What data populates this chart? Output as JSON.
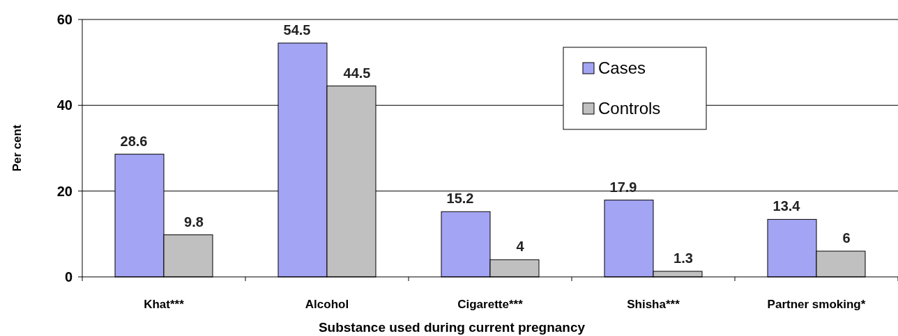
{
  "chart_data": {
    "type": "bar",
    "xlabel": "Substance used during current pregnancy",
    "ylabel": "Per cent",
    "categories": [
      "Khat***",
      "Alcohol",
      "Cigarette***",
      "Shisha***",
      "Partner smoking*"
    ],
    "series": [
      {
        "name": "Cases",
        "color": "#a4a4f4",
        "values": [
          28.6,
          54.5,
          15.2,
          17.9,
          13.4
        ]
      },
      {
        "name": "Controls",
        "color": "#c0c0c0",
        "values": [
          9.8,
          44.5,
          4,
          1.3,
          6
        ]
      }
    ],
    "ylim": [
      0,
      60
    ],
    "yticks": [
      0,
      20,
      40,
      60
    ],
    "grid": "y",
    "legend": "top right",
    "data_labels": true
  }
}
